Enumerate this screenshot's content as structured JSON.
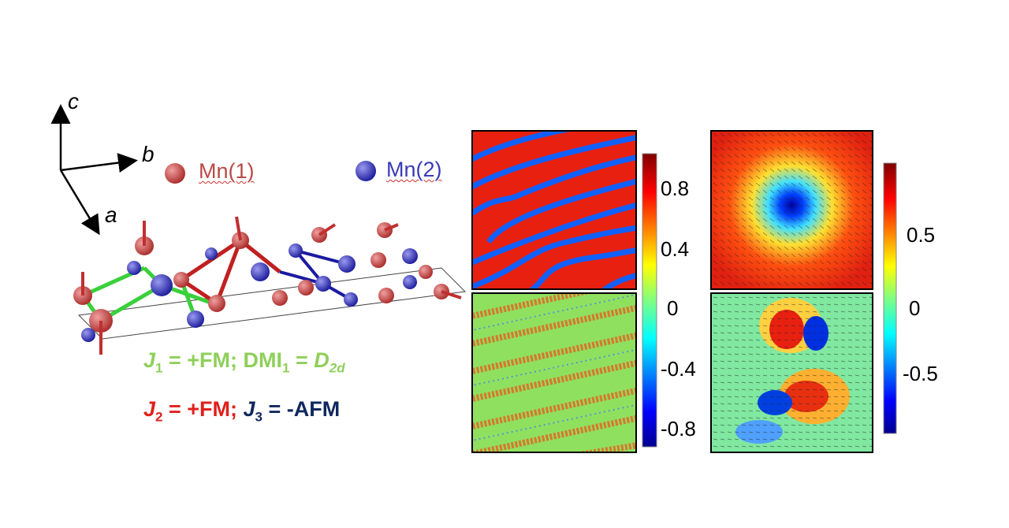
{
  "axes": {
    "c": "c",
    "b": "b",
    "a": "a"
  },
  "legend": [
    {
      "label": "Mn(1)",
      "color": "#b84a46"
    },
    {
      "label": "Mn(2)",
      "color": "#3a3ab8"
    }
  ],
  "equations": {
    "line1": {
      "j": "J",
      "j_sub": "1",
      "text1": " = +FM; DMI",
      "dmi_sub": "1",
      "text2": " = ",
      "d": "D",
      "d_sub": "2d",
      "color": "#8fcf5a"
    },
    "line2": {
      "j2": "J",
      "j2_sub": "2",
      "text1": " = +FM; ",
      "j3": "J",
      "j3_sub": "3",
      "text2": " = -AFM",
      "color_red": "#e0201c",
      "color_navy": "#10275e"
    }
  },
  "colorbar_left": {
    "ticks": [
      "0.8",
      "0.4",
      "0",
      "-0.4",
      "-0.8"
    ],
    "range": [
      -1,
      1
    ]
  },
  "colorbar_right": {
    "ticks": [
      "0.5",
      "0",
      "-0.5"
    ],
    "range": [
      -1,
      1
    ]
  },
  "colormap": "jet"
}
